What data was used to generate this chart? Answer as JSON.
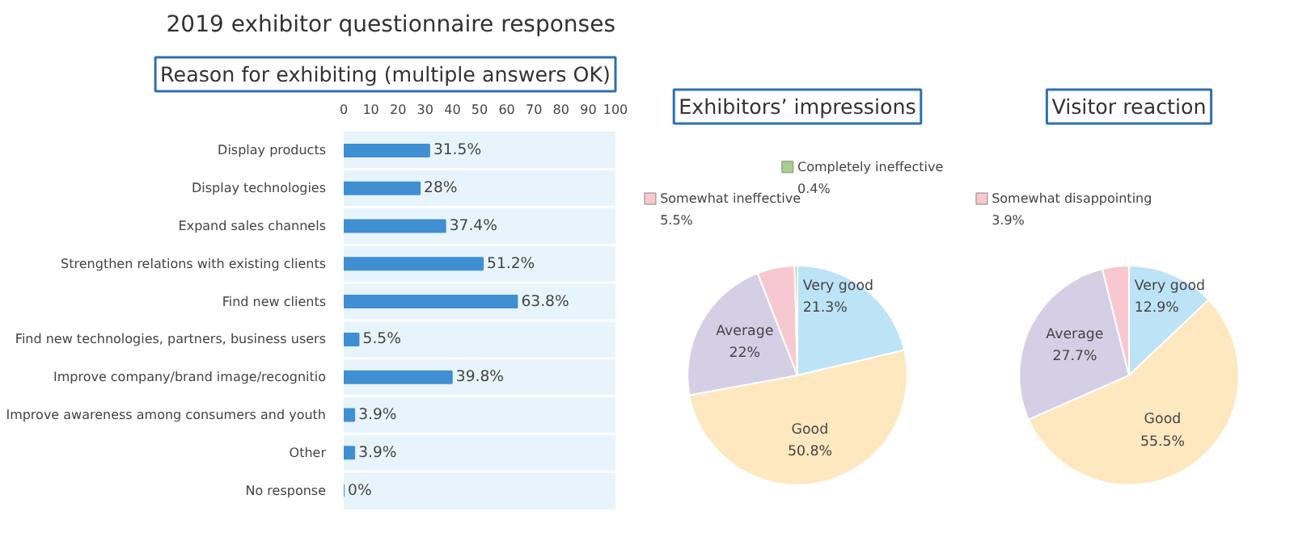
{
  "chart_data": [
    {
      "type": "bar",
      "title": "2019 exhibitor questionnaire responses",
      "subtitle": "Reason for exhibiting (multiple answers OK)",
      "orientation": "horizontal",
      "categories": [
        "Display products",
        "Display technologies",
        "Expand sales channels",
        "Strengthen relations with existing clients",
        "Find new clients",
        "Find new technologies, partners, business users",
        "Improve company/brand image/recognitio",
        "Improve awareness among consumers and youth",
        "Other",
        "No response"
      ],
      "values": [
        31.5,
        28,
        37.4,
        51.2,
        63.8,
        5.5,
        39.8,
        3.9,
        3.9,
        0
      ],
      "value_labels": [
        "31.5%",
        "28%",
        "37.4%",
        "51.2%",
        "63.8%",
        "5.5%",
        "39.8%",
        "3.9%",
        "3.9%",
        "0%"
      ],
      "color": "#3f8fd2",
      "xlim": [
        0,
        100
      ],
      "xticks": [
        0,
        10,
        20,
        30,
        40,
        50,
        60,
        70,
        80,
        90,
        100
      ]
    },
    {
      "type": "pie",
      "title": "Exhibitors’ impressions",
      "categories": [
        "Very good",
        "Good",
        "Average",
        "Somewhat ineffective",
        "Completely ineffective"
      ],
      "values": [
        21.3,
        50.8,
        22,
        5.5,
        0.4
      ],
      "value_labels": [
        "21.3%",
        "50.8%",
        "22%",
        "5.5%",
        "0.4%"
      ],
      "colors": [
        "#bde3f7",
        "#fde8c0",
        "#d5cfe6",
        "#f7c8d0",
        "#a8d08d"
      ],
      "legend": "top"
    },
    {
      "type": "pie",
      "title": "Visitor reaction",
      "categories": [
        "Very good",
        "Good",
        "Average",
        "Somewhat disappointing"
      ],
      "values": [
        12.9,
        55.5,
        27.7,
        3.9
      ],
      "value_labels": [
        "12.9%",
        "55.5%",
        "27.7%",
        "3.9%"
      ],
      "colors": [
        "#bde3f7",
        "#fde8c0",
        "#d5cfe6",
        "#f7c8d0"
      ],
      "legend": "top"
    }
  ]
}
